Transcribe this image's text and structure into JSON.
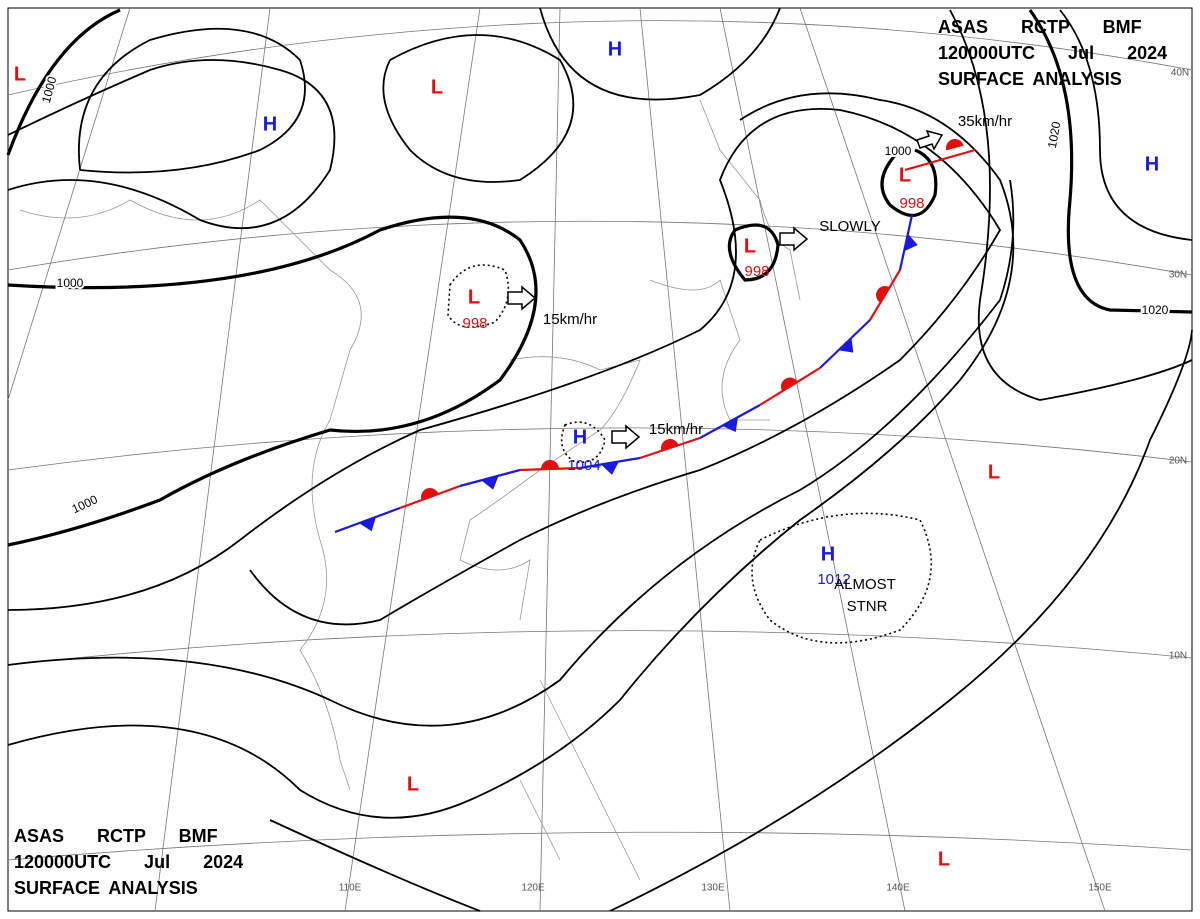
{
  "header": {
    "line1": "ASAS RCTP BMF",
    "line2": "120000UTC Jul 2024",
    "line3": "SURFACE ANALYSIS"
  },
  "footer": {
    "line1": "ASAS RCTP BMF",
    "line2": "120000UTC Jul 2024",
    "line3": "SURFACE ANALYSIS"
  },
  "centers": [
    {
      "symbol": "L",
      "pressure": "998"
    },
    {
      "symbol": "H",
      "pressure": "1004"
    },
    {
      "symbol": "L",
      "pressure": "998"
    },
    {
      "symbol": "L",
      "pressure": "998"
    },
    {
      "symbol": "H",
      "pressure": "1012"
    },
    {
      "symbol": "L"
    },
    {
      "symbol": "H"
    },
    {
      "symbol": "L"
    },
    {
      "symbol": "H"
    },
    {
      "symbol": "H"
    },
    {
      "symbol": "L"
    },
    {
      "symbol": "L"
    },
    {
      "symbol": "L"
    }
  ],
  "isobar_labels": [
    "1000",
    "1000",
    "1000",
    "1000",
    "1020",
    "1020"
  ],
  "motions": [
    "15km/hr",
    "15km/hr",
    "SLOWLY",
    "35km/hr",
    "ALMOST",
    "STNR"
  ],
  "latitude_labels": [
    "40N",
    "30N",
    "20N",
    "10N"
  ],
  "longitude_labels": [
    "110E",
    "120E",
    "130E",
    "140E",
    "150E"
  ]
}
